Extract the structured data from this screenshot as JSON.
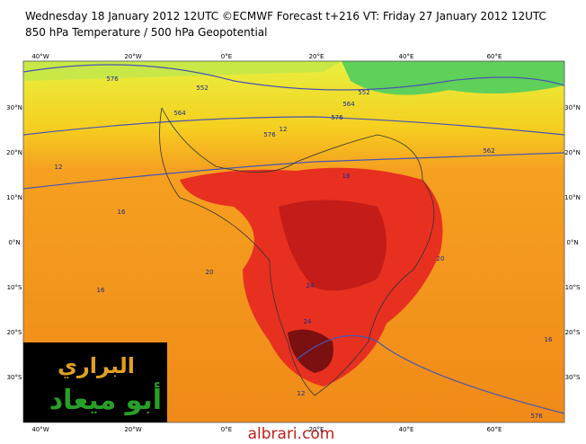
{
  "header": {
    "line1": "Wednesday 18 January 2012 12UTC ©ECMWF Forecast t+216 VT: Friday 27 January 2012 12UTC",
    "line2": "850 hPa Temperature / 500 hPa Geopotential"
  },
  "map": {
    "longitudes": [
      "40°W",
      "20°W",
      "0°E",
      "20°E",
      "40°E",
      "60°E"
    ],
    "latitudes": [
      "30°N",
      "20°N",
      "10°N",
      "0°N",
      "10°S",
      "20°S",
      "30°S"
    ],
    "contour_labels": [
      "576",
      "564",
      "552",
      "576",
      "12",
      "576",
      "562",
      "12",
      "16",
      "18",
      "20",
      "24",
      "24",
      "20",
      "16",
      "12",
      "576",
      "552",
      "564",
      "16"
    ]
  },
  "logo": {
    "line1": "البراري",
    "line2": "أبو ميعاد"
  },
  "footer": {
    "website": "albrari.com"
  }
}
